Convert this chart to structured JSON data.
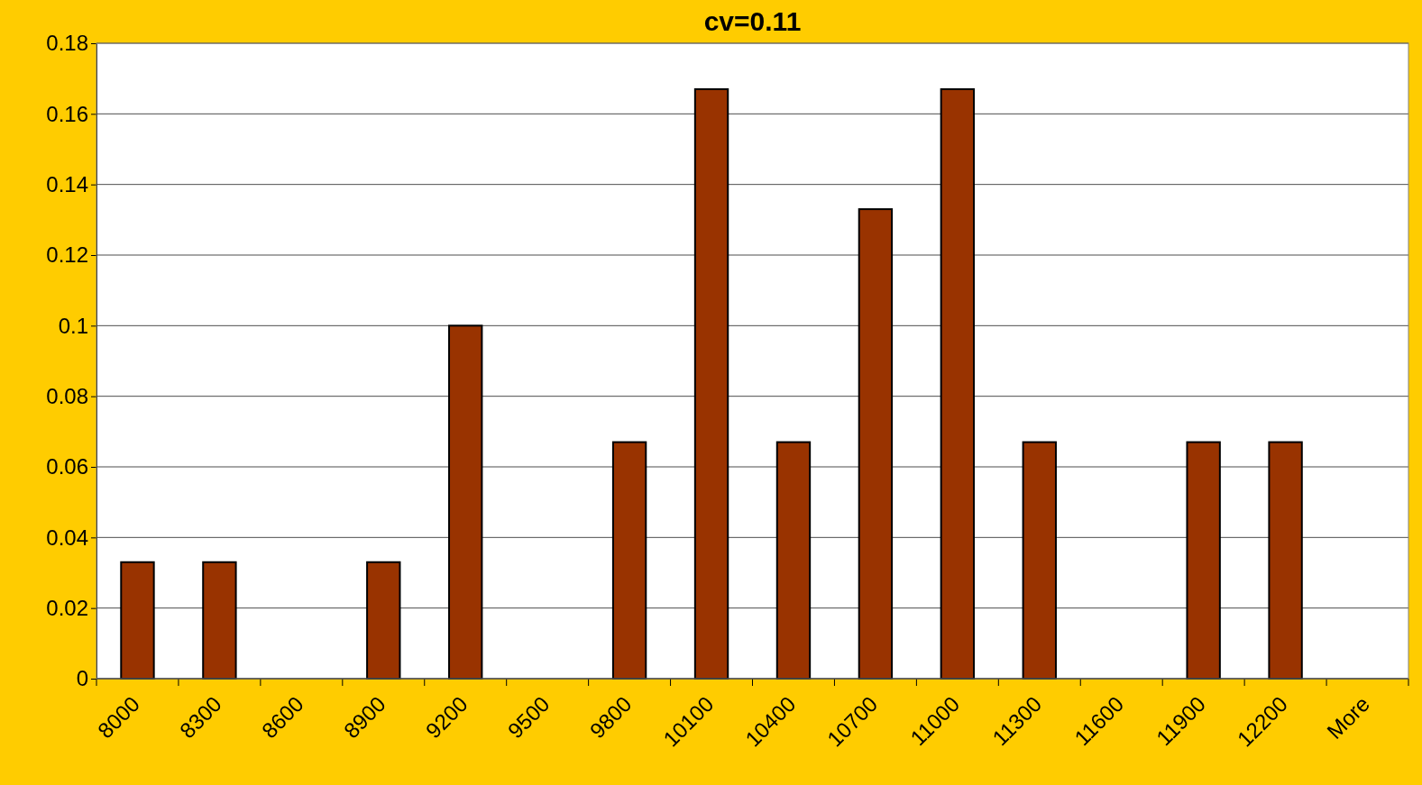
{
  "chart_data": {
    "type": "bar",
    "title": "cv=0.11",
    "categories": [
      "8000",
      "8300",
      "8600",
      "8900",
      "9200",
      "9500",
      "9800",
      "10100",
      "10400",
      "10700",
      "11000",
      "11300",
      "11600",
      "11900",
      "12200",
      "More"
    ],
    "values": [
      0.033,
      0.033,
      0,
      0.033,
      0.1,
      0,
      0.067,
      0.167,
      0.067,
      0.133,
      0.167,
      0.067,
      0,
      0.067,
      0.067,
      0
    ],
    "color": "#993300",
    "ylim": [
      0,
      0.18
    ],
    "yticks": [
      0,
      0.02,
      0.04,
      0.06,
      0.08,
      0.1,
      0.12,
      0.14,
      0.16,
      0.18
    ],
    "grid": "y"
  }
}
